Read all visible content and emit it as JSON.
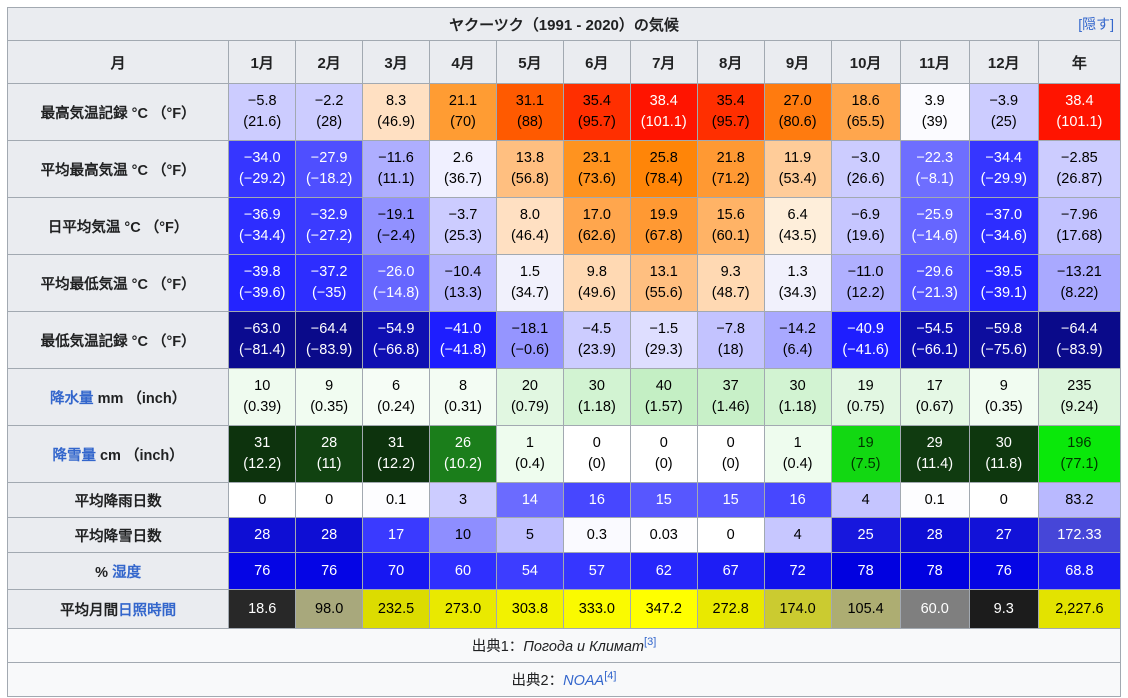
{
  "title": {
    "text": "ヤクーツク（1991 - 2020）の気候",
    "hide_label": "[隠す]"
  },
  "header": {
    "month_label": "月",
    "months": [
      "1月",
      "2月",
      "3月",
      "4月",
      "5月",
      "6月",
      "7月",
      "8月",
      "9月",
      "10月",
      "11月",
      "12月"
    ],
    "year_label": "年"
  },
  "link_color": "#3366cc",
  "header_bg": "#eaecf0",
  "rows": [
    {
      "id": "record-high",
      "label_parts": [
        {
          "text": "最高気温記録 °C （°F）",
          "link": false
        }
      ],
      "cells": [
        {
          "v": "−5.8",
          "f": "(21.6)",
          "bg": "#ccccff",
          "fg": "#000000"
        },
        {
          "v": "−2.2",
          "f": "(28)",
          "bg": "#ccccff",
          "fg": "#000000"
        },
        {
          "v": "8.3",
          "f": "(46.9)",
          "bg": "#ffe0c2",
          "fg": "#000000"
        },
        {
          "v": "21.1",
          "f": "(70)",
          "bg": "#ff9c33",
          "fg": "#000000"
        },
        {
          "v": "31.1",
          "f": "(88)",
          "bg": "#ff5a00",
          "fg": "#000000"
        },
        {
          "v": "35.4",
          "f": "(95.7)",
          "bg": "#ff2f00",
          "fg": "#000000"
        },
        {
          "v": "38.4",
          "f": "(101.1)",
          "bg": "#ff1400",
          "fg": "#ffffff"
        },
        {
          "v": "35.4",
          "f": "(95.7)",
          "bg": "#ff2f00",
          "fg": "#000000"
        },
        {
          "v": "27.0",
          "f": "(80.6)",
          "bg": "#ff7b0f",
          "fg": "#000000"
        },
        {
          "v": "18.6",
          "f": "(65.5)",
          "bg": "#ffa64d",
          "fg": "#000000"
        },
        {
          "v": "3.9",
          "f": "(39)",
          "bg": "#fbfbff",
          "fg": "#000000"
        },
        {
          "v": "−3.9",
          "f": "(25)",
          "bg": "#ccccff",
          "fg": "#000000"
        },
        {
          "v": "38.4",
          "f": "(101.1)",
          "bg": "#ff1400",
          "fg": "#ffffff"
        }
      ]
    },
    {
      "id": "avg-high",
      "label_parts": [
        {
          "text": "平均最高気温 °C （°F）",
          "link": false
        }
      ],
      "cells": [
        {
          "v": "−34.0",
          "f": "(−29.2)",
          "bg": "#3636ff",
          "fg": "#ffffff"
        },
        {
          "v": "−27.9",
          "f": "(−18.2)",
          "bg": "#4f4fff",
          "fg": "#ffffff"
        },
        {
          "v": "−11.6",
          "f": "(11.1)",
          "bg": "#aeaeff",
          "fg": "#000000"
        },
        {
          "v": "2.6",
          "f": "(36.7)",
          "bg": "#f0f0ff",
          "fg": "#000000"
        },
        {
          "v": "13.8",
          "f": "(56.8)",
          "bg": "#ffbf80",
          "fg": "#000000"
        },
        {
          "v": "23.1",
          "f": "(73.6)",
          "bg": "#ff931f",
          "fg": "#000000"
        },
        {
          "v": "25.8",
          "f": "(78.4)",
          "bg": "#ff8508",
          "fg": "#000000"
        },
        {
          "v": "21.8",
          "f": "(71.2)",
          "bg": "#ff9933",
          "fg": "#000000"
        },
        {
          "v": "11.9",
          "f": "(53.4)",
          "bg": "#ffcc99",
          "fg": "#000000"
        },
        {
          "v": "−3.0",
          "f": "(26.6)",
          "bg": "#ccccff",
          "fg": "#000000"
        },
        {
          "v": "−22.3",
          "f": "(−8.1)",
          "bg": "#6e6eff",
          "fg": "#ffffff"
        },
        {
          "v": "−34.4",
          "f": "(−29.9)",
          "bg": "#3636ff",
          "fg": "#ffffff"
        },
        {
          "v": "−2.85",
          "f": "(26.87)",
          "bg": "#ccccff",
          "fg": "#000000"
        }
      ]
    },
    {
      "id": "daily-mean",
      "label_parts": [
        {
          "text": "日平均気温 °C （°F）",
          "link": false
        }
      ],
      "cells": [
        {
          "v": "−36.9",
          "f": "(−34.4)",
          "bg": "#2d2dff",
          "fg": "#ffffff"
        },
        {
          "v": "−32.9",
          "f": "(−27.2)",
          "bg": "#3b3bff",
          "fg": "#ffffff"
        },
        {
          "v": "−19.1",
          "f": "(−2.4)",
          "bg": "#9191ff",
          "fg": "#000000"
        },
        {
          "v": "−3.7",
          "f": "(25.3)",
          "bg": "#ccccff",
          "fg": "#000000"
        },
        {
          "v": "8.0",
          "f": "(46.4)",
          "bg": "#ffe0c2",
          "fg": "#000000"
        },
        {
          "v": "17.0",
          "f": "(62.6)",
          "bg": "#ffa64d",
          "fg": "#000000"
        },
        {
          "v": "19.9",
          "f": "(67.8)",
          "bg": "#ff9933",
          "fg": "#000000"
        },
        {
          "v": "15.6",
          "f": "(60.1)",
          "bg": "#ffb366",
          "fg": "#000000"
        },
        {
          "v": "6.4",
          "f": "(43.5)",
          "bg": "#feeeda",
          "fg": "#000000"
        },
        {
          "v": "−6.9",
          "f": "(19.6)",
          "bg": "#c6c6ff",
          "fg": "#000000"
        },
        {
          "v": "−25.9",
          "f": "(−14.6)",
          "bg": "#6666ff",
          "fg": "#ffffff"
        },
        {
          "v": "−37.0",
          "f": "(−34.6)",
          "bg": "#2d2dff",
          "fg": "#ffffff"
        },
        {
          "v": "−7.96",
          "f": "(17.68)",
          "bg": "#c2c2ff",
          "fg": "#000000"
        }
      ]
    },
    {
      "id": "avg-low",
      "label_parts": [
        {
          "text": "平均最低気温 °C （°F）",
          "link": false
        }
      ],
      "cells": [
        {
          "v": "−39.8",
          "f": "(−39.6)",
          "bg": "#2424ff",
          "fg": "#ffffff"
        },
        {
          "v": "−37.2",
          "f": "(−35)",
          "bg": "#2d2dff",
          "fg": "#ffffff"
        },
        {
          "v": "−26.0",
          "f": "(−14.8)",
          "bg": "#6666ff",
          "fg": "#ffffff"
        },
        {
          "v": "−10.4",
          "f": "(13.3)",
          "bg": "#b4b4ff",
          "fg": "#000000"
        },
        {
          "v": "1.5",
          "f": "(34.7)",
          "bg": "#f1f1fc",
          "fg": "#000000"
        },
        {
          "v": "9.8",
          "f": "(49.6)",
          "bg": "#ffd9b3",
          "fg": "#000000"
        },
        {
          "v": "13.1",
          "f": "(55.6)",
          "bg": "#ffbf80",
          "fg": "#000000"
        },
        {
          "v": "9.3",
          "f": "(48.7)",
          "bg": "#ffd9b3",
          "fg": "#000000"
        },
        {
          "v": "1.3",
          "f": "(34.3)",
          "bg": "#f1f1fc",
          "fg": "#000000"
        },
        {
          "v": "−11.0",
          "f": "(12.2)",
          "bg": "#b0b0ff",
          "fg": "#000000"
        },
        {
          "v": "−29.6",
          "f": "(−21.3)",
          "bg": "#5454ff",
          "fg": "#ffffff"
        },
        {
          "v": "−39.5",
          "f": "(−39.1)",
          "bg": "#2424ff",
          "fg": "#ffffff"
        },
        {
          "v": "−13.21",
          "f": "(8.22)",
          "bg": "#a9a9ff",
          "fg": "#000000"
        }
      ]
    },
    {
      "id": "record-low",
      "label_parts": [
        {
          "text": "最低気温記録 °C （°F）",
          "link": false
        }
      ],
      "cells": [
        {
          "v": "−63.0",
          "f": "(−81.4)",
          "bg": "#0b0b90",
          "fg": "#ffffff"
        },
        {
          "v": "−64.4",
          "f": "(−83.9)",
          "bg": "#0a0a8a",
          "fg": "#ffffff"
        },
        {
          "v": "−54.9",
          "f": "(−66.8)",
          "bg": "#0f0fb2",
          "fg": "#ffffff"
        },
        {
          "v": "−41.0",
          "f": "(−41.8)",
          "bg": "#1e1eff",
          "fg": "#ffffff"
        },
        {
          "v": "−18.1",
          "f": "(−0.6)",
          "bg": "#9595ff",
          "fg": "#000000"
        },
        {
          "v": "−4.5",
          "f": "(23.9)",
          "bg": "#ccccff",
          "fg": "#000000"
        },
        {
          "v": "−1.5",
          "f": "(29.3)",
          "bg": "#dedeff",
          "fg": "#000000"
        },
        {
          "v": "−7.8",
          "f": "(18)",
          "bg": "#c3c3ff",
          "fg": "#000000"
        },
        {
          "v": "−14.2",
          "f": "(6.4)",
          "bg": "#a9a9ff",
          "fg": "#000000"
        },
        {
          "v": "−40.9",
          "f": "(−41.6)",
          "bg": "#1e1eff",
          "fg": "#ffffff"
        },
        {
          "v": "−54.5",
          "f": "(−66.1)",
          "bg": "#0f0fb2",
          "fg": "#ffffff"
        },
        {
          "v": "−59.8",
          "f": "(−75.6)",
          "bg": "#0d0d9e",
          "fg": "#ffffff"
        },
        {
          "v": "−64.4",
          "f": "(−83.9)",
          "bg": "#0a0a8a",
          "fg": "#ffffff"
        }
      ]
    },
    {
      "id": "precipitation",
      "label_parts": [
        {
          "text": "降水量",
          "link": true
        },
        {
          "text": " mm （inch）",
          "link": false
        }
      ],
      "cells": [
        {
          "v": "10",
          "f": "(0.39)",
          "bg": "#effbef",
          "fg": "#000000"
        },
        {
          "v": "9",
          "f": "(0.35)",
          "bg": "#f1fcf1",
          "fg": "#000000"
        },
        {
          "v": "6",
          "f": "(0.24)",
          "bg": "#f6fdf6",
          "fg": "#000000"
        },
        {
          "v": "8",
          "f": "(0.31)",
          "bg": "#f3fcf3",
          "fg": "#000000"
        },
        {
          "v": "20",
          "f": "(0.79)",
          "bg": "#e1f7e1",
          "fg": "#000000"
        },
        {
          "v": "30",
          "f": "(1.18)",
          "bg": "#d2f3d2",
          "fg": "#000000"
        },
        {
          "v": "40",
          "f": "(1.57)",
          "bg": "#c4efc4",
          "fg": "#000000"
        },
        {
          "v": "37",
          "f": "(1.46)",
          "bg": "#c8f0c8",
          "fg": "#000000"
        },
        {
          "v": "30",
          "f": "(1.18)",
          "bg": "#d2f3d2",
          "fg": "#000000"
        },
        {
          "v": "19",
          "f": "(0.75)",
          "bg": "#e2f7e2",
          "fg": "#000000"
        },
        {
          "v": "17",
          "f": "(0.67)",
          "bg": "#e5f8e5",
          "fg": "#000000"
        },
        {
          "v": "9",
          "f": "(0.35)",
          "bg": "#f1fcf1",
          "fg": "#000000"
        },
        {
          "v": "235",
          "f": "(9.24)",
          "bg": "#dcf5dc",
          "fg": "#000000"
        }
      ]
    },
    {
      "id": "snowfall",
      "label_parts": [
        {
          "text": "降雪量",
          "link": true
        },
        {
          "text": " cm （inch）",
          "link": false
        }
      ],
      "cells": [
        {
          "v": "31",
          "f": "(12.2)",
          "bg": "#0d330d",
          "fg": "#ffffff"
        },
        {
          "v": "28",
          "f": "(11)",
          "bg": "#114211",
          "fg": "#ffffff"
        },
        {
          "v": "31",
          "f": "(12.2)",
          "bg": "#0d330d",
          "fg": "#ffffff"
        },
        {
          "v": "26",
          "f": "(10.2)",
          "bg": "#1b7e1b",
          "fg": "#ffffff"
        },
        {
          "v": "1",
          "f": "(0.4)",
          "bg": "#eefcee",
          "fg": "#000000"
        },
        {
          "v": "0",
          "f": "(0)",
          "bg": "#ffffff",
          "fg": "#000000"
        },
        {
          "v": "0",
          "f": "(0)",
          "bg": "#ffffff",
          "fg": "#000000"
        },
        {
          "v": "0",
          "f": "(0)",
          "bg": "#ffffff",
          "fg": "#000000"
        },
        {
          "v": "1",
          "f": "(0.4)",
          "bg": "#eefcee",
          "fg": "#000000"
        },
        {
          "v": "19",
          "f": "(7.5)",
          "bg": "#12d812",
          "fg": "#003300"
        },
        {
          "v": "29",
          "f": "(11.4)",
          "bg": "#103b10",
          "fg": "#ffffff"
        },
        {
          "v": "30",
          "f": "(11.8)",
          "bg": "#0e370e",
          "fg": "#ffffff"
        },
        {
          "v": "196",
          "f": "(77.1)",
          "bg": "#0ae80a",
          "fg": "#003300"
        }
      ]
    },
    {
      "id": "rainy-days",
      "label_parts": [
        {
          "text": "平均降雨日数",
          "link": false
        }
      ],
      "cells": [
        {
          "v": "0",
          "bg": "#ffffff",
          "fg": "#000000"
        },
        {
          "v": "0",
          "bg": "#ffffff",
          "fg": "#000000"
        },
        {
          "v": "0.1",
          "bg": "#fdfdff",
          "fg": "#000000"
        },
        {
          "v": "3",
          "bg": "#ccccff",
          "fg": "#000000"
        },
        {
          "v": "14",
          "bg": "#6b6bff",
          "fg": "#ffffff"
        },
        {
          "v": "16",
          "bg": "#4747ff",
          "fg": "#ffffff"
        },
        {
          "v": "15",
          "bg": "#5757ff",
          "fg": "#ffffff"
        },
        {
          "v": "15",
          "bg": "#5757ff",
          "fg": "#ffffff"
        },
        {
          "v": "16",
          "bg": "#4747ff",
          "fg": "#ffffff"
        },
        {
          "v": "4",
          "bg": "#c5c5ff",
          "fg": "#000000"
        },
        {
          "v": "0.1",
          "bg": "#fdfdff",
          "fg": "#000000"
        },
        {
          "v": "0",
          "bg": "#ffffff",
          "fg": "#000000"
        },
        {
          "v": "83.2",
          "bg": "#b9b9ff",
          "fg": "#000000"
        }
      ]
    },
    {
      "id": "snowy-days",
      "label_parts": [
        {
          "text": "平均降雪日数",
          "link": false
        }
      ],
      "cells": [
        {
          "v": "28",
          "bg": "#0e0ed4",
          "fg": "#ffffff"
        },
        {
          "v": "28",
          "bg": "#0e0ed4",
          "fg": "#ffffff"
        },
        {
          "v": "17",
          "bg": "#3a3aff",
          "fg": "#ffffff"
        },
        {
          "v": "10",
          "bg": "#8e8eff",
          "fg": "#000000"
        },
        {
          "v": "5",
          "bg": "#bfbfff",
          "fg": "#000000"
        },
        {
          "v": "0.3",
          "bg": "#fafaff",
          "fg": "#000000"
        },
        {
          "v": "0.03",
          "bg": "#fefeff",
          "fg": "#000000"
        },
        {
          "v": "0",
          "bg": "#ffffff",
          "fg": "#000000"
        },
        {
          "v": "4",
          "bg": "#c7c7ff",
          "fg": "#000000"
        },
        {
          "v": "25",
          "bg": "#1717dd",
          "fg": "#ffffff"
        },
        {
          "v": "28",
          "bg": "#0e0ed4",
          "fg": "#ffffff"
        },
        {
          "v": "27",
          "bg": "#1212d8",
          "fg": "#ffffff"
        },
        {
          "v": "172.33",
          "bg": "#4646d8",
          "fg": "#ffffff"
        }
      ]
    },
    {
      "id": "humidity",
      "label_parts": [
        {
          "text": "% ",
          "link": false
        },
        {
          "text": "湿度",
          "link": true
        }
      ],
      "cells": [
        {
          "v": "76",
          "bg": "#0505e5",
          "fg": "#ffffff"
        },
        {
          "v": "76",
          "bg": "#0505e5",
          "fg": "#ffffff"
        },
        {
          "v": "70",
          "bg": "#1717f2",
          "fg": "#ffffff"
        },
        {
          "v": "60",
          "bg": "#2f2fff",
          "fg": "#ffffff"
        },
        {
          "v": "54",
          "bg": "#3d3dff",
          "fg": "#ffffff"
        },
        {
          "v": "57",
          "bg": "#3636ff",
          "fg": "#ffffff"
        },
        {
          "v": "62",
          "bg": "#2727fb",
          "fg": "#ffffff"
        },
        {
          "v": "67",
          "bg": "#1d1df5",
          "fg": "#ffffff"
        },
        {
          "v": "72",
          "bg": "#1111ec",
          "fg": "#ffffff"
        },
        {
          "v": "78",
          "bg": "#0101e0",
          "fg": "#ffffff"
        },
        {
          "v": "78",
          "bg": "#0101e0",
          "fg": "#ffffff"
        },
        {
          "v": "76",
          "bg": "#0505e5",
          "fg": "#ffffff"
        },
        {
          "v": "68.8",
          "bg": "#1b1bf2",
          "fg": "#ffffff"
        }
      ]
    },
    {
      "id": "sunshine",
      "label_parts": [
        {
          "text": "平均月間",
          "link": false
        },
        {
          "text": "日照時間",
          "link": true
        }
      ],
      "cells": [
        {
          "v": "18.6",
          "bg": "#282828",
          "fg": "#ffffff"
        },
        {
          "v": "98.0",
          "bg": "#a8a87c",
          "fg": "#000000"
        },
        {
          "v": "232.5",
          "bg": "#dcdc00",
          "fg": "#000000"
        },
        {
          "v": "273.0",
          "bg": "#e9e900",
          "fg": "#000000"
        },
        {
          "v": "303.8",
          "bg": "#f2f200",
          "fg": "#000000"
        },
        {
          "v": "333.0",
          "bg": "#fafa00",
          "fg": "#000000"
        },
        {
          "v": "347.2",
          "bg": "#ffff00",
          "fg": "#000000"
        },
        {
          "v": "272.8",
          "bg": "#e9e900",
          "fg": "#000000"
        },
        {
          "v": "174.0",
          "bg": "#cbcb30",
          "fg": "#000000"
        },
        {
          "v": "105.4",
          "bg": "#adad72",
          "fg": "#000000"
        },
        {
          "v": "60.0",
          "bg": "#7f7f7f",
          "fg": "#ffffff"
        },
        {
          "v": "9.3",
          "bg": "#1c1c1c",
          "fg": "#ffffff"
        },
        {
          "v": "2,227.6",
          "bg": "#e3e300",
          "fg": "#000000"
        }
      ]
    }
  ],
  "sources": [
    {
      "prefix": "出典1：",
      "name": "Погода и Климат",
      "ref": "[3]",
      "name_is_link": false
    },
    {
      "prefix": "出典2：",
      "name": "NOAA",
      "ref": "[4]",
      "name_is_link": true
    }
  ]
}
